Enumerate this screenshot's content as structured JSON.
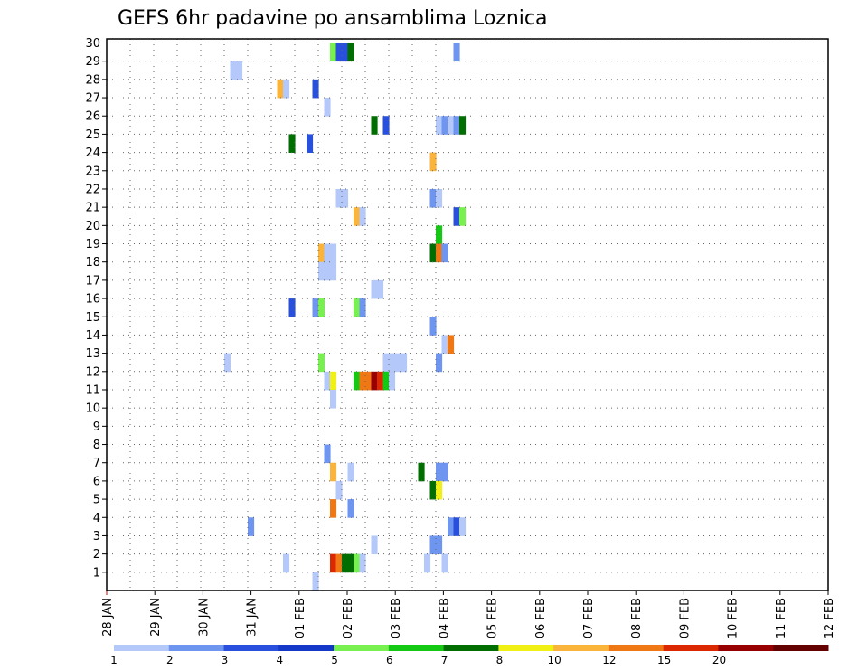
{
  "chart_data": {
    "type": "heatmap",
    "title": "GEFS 6hr padavine po ansamblima Loznica",
    "x_tick_labels": [
      "28 JAN",
      "29 JAN",
      "30 JAN",
      "31 JAN",
      "01 FEB",
      "02 FEB",
      "03 FEB",
      "04 FEB",
      "05 FEB",
      "06 FEB",
      "07 FEB",
      "08 FEB",
      "09 FEB",
      "10 FEB",
      "11 FEB",
      "12 FEB"
    ],
    "y_tick_labels": [
      "1",
      "2",
      "3",
      "4",
      "5",
      "6",
      "7",
      "8",
      "9",
      "10",
      "11",
      "12",
      "13",
      "14",
      "15",
      "16",
      "17",
      "18",
      "19",
      "20",
      "21",
      "22",
      "23",
      "24",
      "25",
      "26",
      "27",
      "28",
      "29",
      "30"
    ],
    "xlim_days": [
      0,
      15
    ],
    "ylim": [
      0,
      30
    ],
    "grid": true,
    "colorbar": {
      "boundary_labels": [
        "1",
        "2",
        "3",
        "4",
        "5",
        "6",
        "7",
        "8",
        "10",
        "12",
        "15",
        "20"
      ],
      "colors": [
        "#b4c8fa",
        "#6e96f0",
        "#2850dc",
        "#1438c8",
        "#78f050",
        "#14c814",
        "#006e00",
        "#f0f014",
        "#fab43c",
        "#f07814",
        "#dc2800",
        "#960000",
        "#640000"
      ]
    },
    "cells": [
      {
        "m": 29,
        "t": 38,
        "c": 4
      },
      {
        "m": 29,
        "t": 39,
        "c": 2
      },
      {
        "m": 29,
        "t": 40,
        "c": 2
      },
      {
        "m": 29,
        "t": 41,
        "c": 6
      },
      {
        "m": 29,
        "t": 59,
        "c": 1
      },
      {
        "m": 28,
        "t": 21,
        "c": 0
      },
      {
        "m": 28,
        "t": 22,
        "c": 0
      },
      {
        "m": 27,
        "t": 29,
        "c": 8
      },
      {
        "m": 27,
        "t": 30,
        "c": 0
      },
      {
        "m": 27,
        "t": 35,
        "c": 2
      },
      {
        "m": 26,
        "t": 37,
        "c": 0
      },
      {
        "m": 25,
        "t": 45,
        "c": 6
      },
      {
        "m": 25,
        "t": 47,
        "c": 2
      },
      {
        "m": 25,
        "t": 56,
        "c": 0
      },
      {
        "m": 25,
        "t": 57,
        "c": 1
      },
      {
        "m": 25,
        "t": 58,
        "c": 0
      },
      {
        "m": 25,
        "t": 59,
        "c": 1
      },
      {
        "m": 25,
        "t": 60,
        "c": 6
      },
      {
        "m": 24,
        "t": 31,
        "c": 6
      },
      {
        "m": 24,
        "t": 34,
        "c": 2
      },
      {
        "m": 23,
        "t": 55,
        "c": 8
      },
      {
        "m": 21,
        "t": 39,
        "c": 0
      },
      {
        "m": 21,
        "t": 40,
        "c": 0
      },
      {
        "m": 21,
        "t": 55,
        "c": 1
      },
      {
        "m": 21,
        "t": 56,
        "c": 0
      },
      {
        "m": 20,
        "t": 42,
        "c": 8
      },
      {
        "m": 20,
        "t": 43,
        "c": 0
      },
      {
        "m": 20,
        "t": 59,
        "c": 2
      },
      {
        "m": 20,
        "t": 60,
        "c": 4
      },
      {
        "m": 19,
        "t": 56,
        "c": 5
      },
      {
        "m": 18,
        "t": 36,
        "c": 8
      },
      {
        "m": 18,
        "t": 37,
        "c": 0
      },
      {
        "m": 18,
        "t": 38,
        "c": 0
      },
      {
        "m": 18,
        "t": 55,
        "c": 6
      },
      {
        "m": 18,
        "t": 56,
        "c": 9
      },
      {
        "m": 18,
        "t": 57,
        "c": 1
      },
      {
        "m": 17,
        "t": 36,
        "c": 0
      },
      {
        "m": 17,
        "t": 37,
        "c": 0
      },
      {
        "m": 17,
        "t": 38,
        "c": 0
      },
      {
        "m": 16,
        "t": 45,
        "c": 0
      },
      {
        "m": 16,
        "t": 46,
        "c": 0
      },
      {
        "m": 15,
        "t": 31,
        "c": 2
      },
      {
        "m": 15,
        "t": 35,
        "c": 1
      },
      {
        "m": 15,
        "t": 36,
        "c": 4
      },
      {
        "m": 15,
        "t": 42,
        "c": 4
      },
      {
        "m": 15,
        "t": 43,
        "c": 1
      },
      {
        "m": 14,
        "t": 55,
        "c": 1
      },
      {
        "m": 13,
        "t": 57,
        "c": 0
      },
      {
        "m": 13,
        "t": 58,
        "c": 9
      },
      {
        "m": 12,
        "t": 20,
        "c": 0
      },
      {
        "m": 12,
        "t": 36,
        "c": 4
      },
      {
        "m": 12,
        "t": 47,
        "c": 0
      },
      {
        "m": 12,
        "t": 48,
        "c": 0
      },
      {
        "m": 12,
        "t": 49,
        "c": 0
      },
      {
        "m": 12,
        "t": 50,
        "c": 0
      },
      {
        "m": 12,
        "t": 56,
        "c": 1
      },
      {
        "m": 11,
        "t": 37,
        "c": 0
      },
      {
        "m": 11,
        "t": 38,
        "c": 7
      },
      {
        "m": 11,
        "t": 42,
        "c": 5
      },
      {
        "m": 11,
        "t": 43,
        "c": 9
      },
      {
        "m": 11,
        "t": 44,
        "c": 9
      },
      {
        "m": 11,
        "t": 45,
        "c": 11
      },
      {
        "m": 11,
        "t": 46,
        "c": 10
      },
      {
        "m": 11,
        "t": 47,
        "c": 5
      },
      {
        "m": 11,
        "t": 48,
        "c": 0
      },
      {
        "m": 10,
        "t": 38,
        "c": 0
      },
      {
        "m": 7,
        "t": 37,
        "c": 1
      },
      {
        "m": 6,
        "t": 38,
        "c": 8
      },
      {
        "m": 6,
        "t": 41,
        "c": 0
      },
      {
        "m": 6,
        "t": 53,
        "c": 6
      },
      {
        "m": 6,
        "t": 56,
        "c": 1
      },
      {
        "m": 6,
        "t": 57,
        "c": 1
      },
      {
        "m": 5,
        "t": 39,
        "c": 0
      },
      {
        "m": 5,
        "t": 55,
        "c": 6
      },
      {
        "m": 5,
        "t": 56,
        "c": 7
      },
      {
        "m": 4,
        "t": 38,
        "c": 9
      },
      {
        "m": 4,
        "t": 41,
        "c": 1
      },
      {
        "m": 3,
        "t": 24,
        "c": 1
      },
      {
        "m": 3,
        "t": 58,
        "c": 1
      },
      {
        "m": 3,
        "t": 59,
        "c": 2
      },
      {
        "m": 3,
        "t": 60,
        "c": 0
      },
      {
        "m": 2,
        "t": 45,
        "c": 0
      },
      {
        "m": 2,
        "t": 55,
        "c": 1
      },
      {
        "m": 2,
        "t": 56,
        "c": 1
      },
      {
        "m": 1,
        "t": 30,
        "c": 0
      },
      {
        "m": 1,
        "t": 38,
        "c": 10
      },
      {
        "m": 1,
        "t": 39,
        "c": 9
      },
      {
        "m": 1,
        "t": 40,
        "c": 6
      },
      {
        "m": 1,
        "t": 41,
        "c": 6
      },
      {
        "m": 1,
        "t": 42,
        "c": 4
      },
      {
        "m": 1,
        "t": 43,
        "c": 0
      },
      {
        "m": 1,
        "t": 54,
        "c": 0
      },
      {
        "m": 1,
        "t": 57,
        "c": 0
      },
      {
        "m": 0,
        "t": 35,
        "c": 0
      }
    ]
  }
}
